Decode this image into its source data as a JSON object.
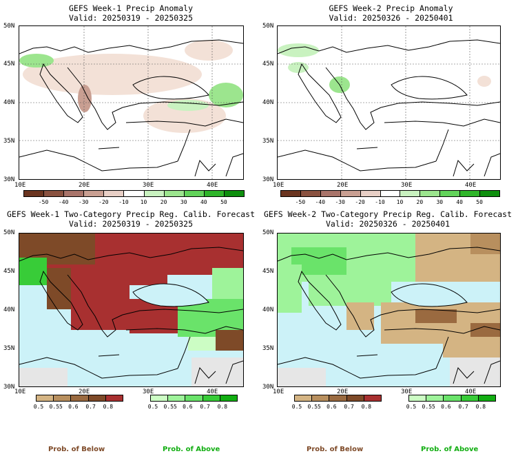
{
  "panels": [
    {
      "title": "GEFS Week-1 Precip Anomaly",
      "valid": "Valid: 20250319 - 20250325",
      "lat_labels": [
        "50N",
        "45N",
        "40N",
        "35N",
        "30N"
      ],
      "lon_labels": [
        "10E",
        "20E",
        "30E",
        "40E"
      ],
      "colorbar": {
        "kind": "anomaly",
        "ticks": [
          "-50",
          "-40",
          "-30",
          "-20",
          "-10",
          "10",
          "20",
          "30",
          "40",
          "50"
        ],
        "colors": [
          "#6b3520",
          "#8a5240",
          "#a9746a",
          "#c99f92",
          "#e8cfc6",
          "#ffffff",
          "#c9f2c0",
          "#9ce58e",
          "#62d35a",
          "#2fb52a",
          "#0e8f0e"
        ]
      }
    },
    {
      "title": "GEFS Week-2 Precip Anomaly",
      "valid": "Valid: 20250326 - 20250401",
      "lat_labels": [
        "50N",
        "45N",
        "40N",
        "35N",
        "30N"
      ],
      "lon_labels": [
        "10E",
        "20E",
        "30E",
        "40E"
      ],
      "colorbar": {
        "kind": "anomaly",
        "ticks": [
          "-50",
          "-40",
          "-30",
          "-20",
          "-10",
          "10",
          "20",
          "30",
          "40",
          "50"
        ],
        "colors": [
          "#6b3520",
          "#8a5240",
          "#a9746a",
          "#c99f92",
          "#e8cfc6",
          "#ffffff",
          "#c9f2c0",
          "#9ce58e",
          "#62d35a",
          "#2fb52a",
          "#0e8f0e"
        ]
      }
    },
    {
      "title": "GEFS Week-1 Two-Category Precip Reg. Calib. Forecast",
      "valid": "Valid: 20250319 - 20250325",
      "lat_labels": [
        "50N",
        "45N",
        "40N",
        "35N",
        "30N"
      ],
      "lon_labels": [
        "10E",
        "20E",
        "30E",
        "40E"
      ],
      "below_bar": {
        "ticks": [
          "0.5",
          "0.55",
          "0.6",
          "0.7",
          "0.8"
        ],
        "colors": [
          "#d4b483",
          "#b88f5e",
          "#9a6a40",
          "#7e4a28",
          "#a83030"
        ]
      },
      "above_bar": {
        "ticks": [
          "0.5",
          "0.55",
          "0.6",
          "0.7",
          "0.8"
        ],
        "colors": [
          "#ccfdc4",
          "#9ef39a",
          "#6ae36a",
          "#38cc38",
          "#12ae12"
        ]
      },
      "below_label": "Prob. of Below",
      "above_label": "Prob. of Above"
    },
    {
      "title": "GEFS Week-2 Two-Category Precip Reg. Calib. Forecast",
      "valid": "Valid: 20250326 - 20250401",
      "lat_labels": [
        "50N",
        "45N",
        "40N",
        "35N",
        "30N"
      ],
      "lon_labels": [
        "10E",
        "20E",
        "30E",
        "40E"
      ],
      "below_bar": {
        "ticks": [
          "0.5",
          "0.55",
          "0.6",
          "0.7",
          "0.8"
        ],
        "colors": [
          "#d4b483",
          "#b88f5e",
          "#9a6a40",
          "#7e4a28",
          "#a83030"
        ]
      },
      "above_bar": {
        "ticks": [
          "0.5",
          "0.55",
          "0.6",
          "0.7",
          "0.8"
        ],
        "colors": [
          "#ccfdc4",
          "#9ef39a",
          "#6ae36a",
          "#38cc38",
          "#12ae12"
        ]
      },
      "below_label": "Prob. of Below",
      "above_label": "Prob. of Above"
    }
  ],
  "chart_data": [
    {
      "type": "heatmap",
      "title": "GEFS Week-1 Precip Anomaly",
      "subtitle": "Valid: 20250319 - 20250325",
      "lat_range": [
        30,
        50
      ],
      "lon_range": [
        10,
        45
      ],
      "grid": true,
      "colorbar_ticks": [
        -50,
        -40,
        -30,
        -20,
        -10,
        10,
        20,
        30,
        40,
        50
      ]
    },
    {
      "type": "heatmap",
      "title": "GEFS Week-2 Precip Anomaly",
      "subtitle": "Valid: 20250326 - 20250401",
      "lat_range": [
        30,
        50
      ],
      "lon_range": [
        10,
        45
      ],
      "grid": true,
      "colorbar_ticks": [
        -50,
        -40,
        -30,
        -20,
        -10,
        10,
        20,
        30,
        40,
        50
      ]
    },
    {
      "type": "heatmap",
      "title": "GEFS Week-1 Two-Category Precip Reg. Calib. Forecast",
      "subtitle": "Valid: 20250319 - 20250325",
      "lat_range": [
        30,
        50
      ],
      "lon_range": [
        10,
        45
      ],
      "colorbar_ticks": [
        0.5,
        0.55,
        0.6,
        0.7,
        0.8
      ]
    },
    {
      "type": "heatmap",
      "title": "GEFS Week-2 Two-Category Precip Reg. Calib. Forecast",
      "subtitle": "Valid: 20250326 - 20250401",
      "lat_range": [
        30,
        50
      ],
      "lon_range": [
        10,
        45
      ],
      "colorbar_ticks": [
        0.5,
        0.55,
        0.6,
        0.7,
        0.8
      ]
    }
  ]
}
